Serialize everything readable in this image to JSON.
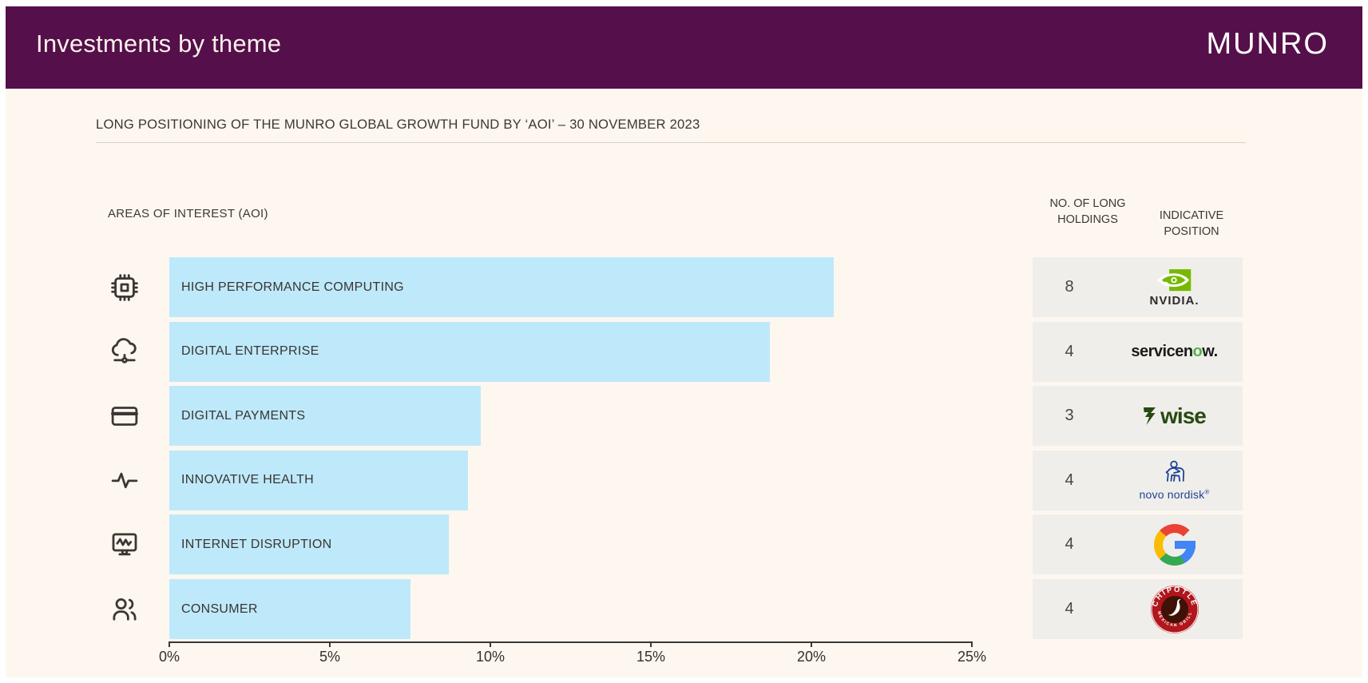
{
  "header": {
    "title": "Investments by theme",
    "brand": "MUNRO"
  },
  "subtitle": "LONG POSITIONING OF THE MUNRO GLOBAL GROWTH FUND BY ‘AOI’ – 30 NOVEMBER 2023",
  "chart_data": {
    "type": "bar",
    "orientation": "horizontal",
    "title": "AREAS OF INTEREST (AOI)",
    "categories": [
      "HIGH PERFORMANCE COMPUTING",
      "DIGITAL ENTERPRISE",
      "DIGITAL PAYMENTS",
      "INNOVATIVE HEALTH",
      "INTERNET DISRUPTION",
      "CONSUMER"
    ],
    "values": [
      20.7,
      18.7,
      9.7,
      9.3,
      8.7,
      7.5
    ],
    "unit": "%",
    "xlim": [
      0,
      25
    ],
    "x_ticks": [
      "0%",
      "5%",
      "10%",
      "15%",
      "20%",
      "25%"
    ],
    "icons": [
      "cpu-chip",
      "cloud-network",
      "credit-card",
      "pulse",
      "monitor-waveform",
      "people"
    ],
    "bar_color": "#bee9fb",
    "grid": false,
    "legend": false
  },
  "holdings_table": {
    "col1_header": "NO. OF LONG HOLDINGS",
    "col2_header": "INDICATIVE POSITION",
    "rows": [
      {
        "holdings": "8",
        "company": "NVIDIA",
        "wordmark": "NVIDIA."
      },
      {
        "holdings": "4",
        "company": "ServiceNow",
        "wordmark_pre": "servicen",
        "wordmark_o": "o",
        "wordmark_post": "w."
      },
      {
        "holdings": "3",
        "company": "Wise",
        "wordmark": "wise"
      },
      {
        "holdings": "4",
        "company": "Novo Nordisk",
        "wordmark": "novo nordisk",
        "registered": "®"
      },
      {
        "holdings": "4",
        "company": "Google"
      },
      {
        "holdings": "4",
        "company": "Chipotle",
        "ring_top": "CHIPOTLE",
        "ring_bottom": "MEXICAN GRILL"
      }
    ]
  },
  "colors": {
    "header_purple": "#550f4a",
    "background_cream": "#fdf7ef",
    "bar_blue": "#bee9fb",
    "table_row_gray": "#f0eeea",
    "text_dark": "#3a3530",
    "nvidia_green": "#76b900",
    "servicenow_green": "#4cb748",
    "wise_green": "#274a12",
    "novo_blue": "#1e4294",
    "chipotle_red": "#b0161c",
    "google_blue": "#4285f4",
    "google_red": "#ea4335",
    "google_yellow": "#fbbc05",
    "google_green": "#34a853"
  }
}
